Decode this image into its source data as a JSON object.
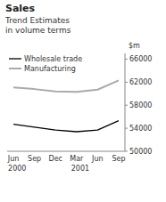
{
  "chart_data": {
    "type": "line",
    "title": "Sales",
    "subtitle": [
      "Trend Estimates",
      "in volume terms"
    ],
    "y_label": "$m",
    "categories": [
      "Jun",
      "Sep",
      "Dec",
      "Mar",
      "Jun",
      "Sep"
    ],
    "series": [
      {
        "name": "Wholesale trade",
        "color": "#000000",
        "values": [
          54700,
          54200,
          53700,
          53400,
          53700,
          55300
        ]
      },
      {
        "name": "Manufacturing",
        "color": "#aaaaaa",
        "values": [
          61100,
          60800,
          60400,
          60300,
          60700,
          62300
        ]
      }
    ],
    "ylim": [
      50000,
      67000
    ],
    "yticks": [
      50000,
      54000,
      58000,
      62000,
      66000
    ],
    "grid": false,
    "legend": "upper-left",
    "annotations": [
      {
        "text": "2000",
        "index": 0
      },
      {
        "text": "2001",
        "index": 3
      }
    ]
  }
}
